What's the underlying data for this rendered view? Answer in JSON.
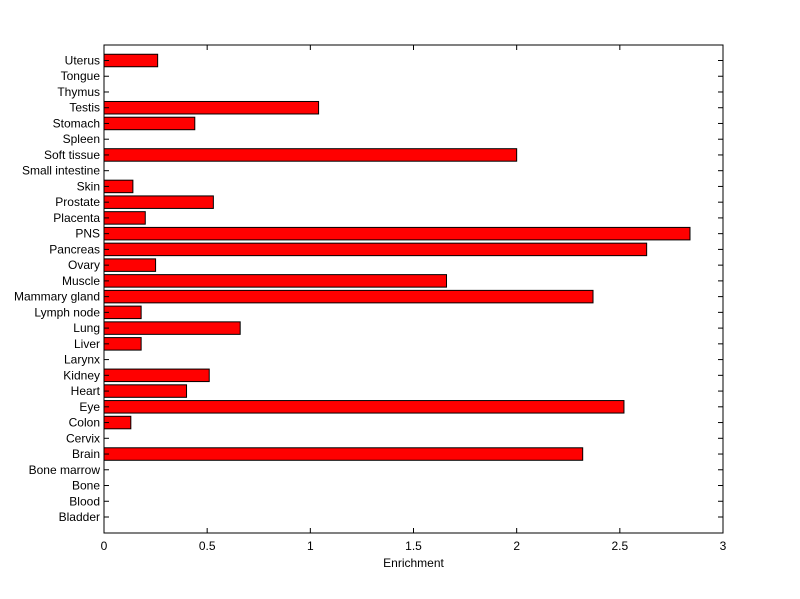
{
  "chart_data": {
    "type": "bar",
    "orientation": "horizontal",
    "title": "",
    "xlabel": "Enrichment",
    "ylabel": "",
    "xlim": [
      0,
      3
    ],
    "xticks": [
      "0",
      "0.5",
      "1",
      "1.5",
      "2",
      "2.5",
      "3"
    ],
    "grid": false,
    "bar_color": "#ff0000",
    "bar_edge_color": "#000000",
    "categories": [
      "Bladder",
      "Blood",
      "Bone",
      "Bone marrow",
      "Brain",
      "Cervix",
      "Colon",
      "Eye",
      "Heart",
      "Kidney",
      "Larynx",
      "Liver",
      "Lung",
      "Lymph node",
      "Mammary gland",
      "Muscle",
      "Ovary",
      "Pancreas",
      "PNS",
      "Placenta",
      "Prostate",
      "Skin",
      "Small intestine",
      "Soft tissue",
      "Spleen",
      "Stomach",
      "Testis",
      "Thymus",
      "Tongue",
      "Uterus"
    ],
    "values": [
      0,
      0,
      0,
      0,
      2.32,
      0,
      0.13,
      2.52,
      0.4,
      0.51,
      0,
      0.18,
      0.66,
      0.18,
      2.37,
      1.66,
      0.25,
      2.63,
      2.84,
      0.2,
      0.53,
      0.14,
      0,
      2.0,
      0,
      0.44,
      1.04,
      0,
      0,
      0.26
    ]
  }
}
